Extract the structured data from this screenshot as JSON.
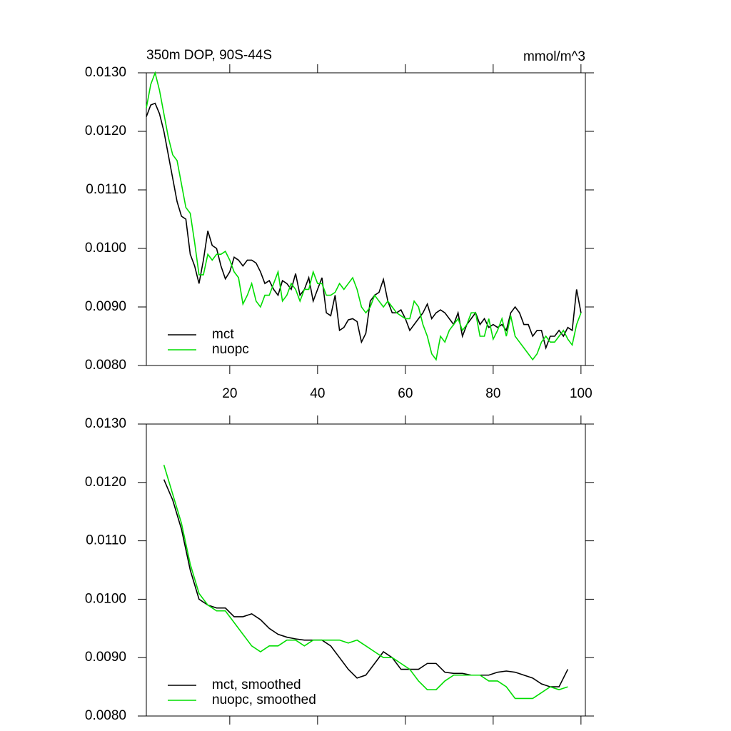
{
  "chart_data": [
    {
      "type": "line",
      "title": "350m DOP, 90S-44S",
      "units": "mmol/m^3",
      "x": [
        1,
        2,
        3,
        4,
        5,
        6,
        7,
        8,
        9,
        10,
        11,
        12,
        13,
        14,
        15,
        16,
        17,
        18,
        19,
        20,
        21,
        22,
        23,
        24,
        25,
        26,
        27,
        28,
        29,
        30,
        31,
        32,
        33,
        34,
        35,
        36,
        37,
        38,
        39,
        40,
        41,
        42,
        43,
        44,
        45,
        46,
        47,
        48,
        49,
        50,
        51,
        52,
        53,
        54,
        55,
        56,
        57,
        58,
        59,
        60,
        61,
        62,
        63,
        64,
        65,
        66,
        67,
        68,
        69,
        70,
        71,
        72,
        73,
        74,
        75,
        76,
        77,
        78,
        79,
        80,
        81,
        82,
        83,
        84,
        85,
        86,
        87,
        88,
        89,
        90,
        91,
        92,
        93,
        94,
        95,
        96,
        97,
        98,
        99,
        100
      ],
      "series": [
        {
          "name": "mct",
          "color": "#000000",
          "values": [
            0.01225,
            0.01245,
            0.01248,
            0.0123,
            0.012,
            0.0116,
            0.0112,
            0.0108,
            0.01055,
            0.0105,
            0.0099,
            0.0097,
            0.0094,
            0.0098,
            0.0103,
            0.01005,
            0.01,
            0.0097,
            0.00948,
            0.0096,
            0.00985,
            0.0098,
            0.0097,
            0.0098,
            0.0098,
            0.00975,
            0.0096,
            0.0094,
            0.00945,
            0.0093,
            0.0092,
            0.00945,
            0.0094,
            0.0093,
            0.00957,
            0.0092,
            0.0093,
            0.0095,
            0.0091,
            0.0093,
            0.0095,
            0.0089,
            0.00885,
            0.0092,
            0.0086,
            0.00865,
            0.00878,
            0.0088,
            0.00875,
            0.0084,
            0.00855,
            0.0091,
            0.0092,
            0.00925,
            0.00947,
            0.0091,
            0.0089,
            0.0089,
            0.00895,
            0.0088,
            0.0086,
            0.0087,
            0.0088,
            0.0089,
            0.00905,
            0.0088,
            0.0089,
            0.00895,
            0.0089,
            0.0088,
            0.0087,
            0.0089,
            0.0085,
            0.0087,
            0.0088,
            0.0089,
            0.0087,
            0.0088,
            0.00865,
            0.0087,
            0.00865,
            0.0087,
            0.0086,
            0.0089,
            0.009,
            0.0089,
            0.0087,
            0.0087,
            0.0085,
            0.0086,
            0.0086,
            0.0083,
            0.0085,
            0.0085,
            0.0086,
            0.0085,
            0.00865,
            0.0086,
            0.0093,
            0.0089
          ]
        },
        {
          "name": "nuopc",
          "color": "#00dd00",
          "values": [
            0.0124,
            0.0128,
            0.013,
            0.0127,
            0.0123,
            0.0119,
            0.0116,
            0.0115,
            0.0111,
            0.0107,
            0.0106,
            0.0101,
            0.00955,
            0.00955,
            0.0099,
            0.0098,
            0.0099,
            0.0099,
            0.00995,
            0.0098,
            0.0096,
            0.0095,
            0.00905,
            0.0092,
            0.0094,
            0.0091,
            0.009,
            0.0092,
            0.0092,
            0.0094,
            0.0096,
            0.0091,
            0.0092,
            0.0094,
            0.0093,
            0.0091,
            0.0093,
            0.0093,
            0.0096,
            0.0094,
            0.0094,
            0.0092,
            0.0092,
            0.00925,
            0.0094,
            0.0093,
            0.0094,
            0.0095,
            0.0093,
            0.009,
            0.0089,
            0.009,
            0.0092,
            0.0091,
            0.009,
            0.0091,
            0.009,
            0.0089,
            0.00885,
            0.0088,
            0.0088,
            0.0091,
            0.009,
            0.0087,
            0.0085,
            0.0082,
            0.0081,
            0.0085,
            0.0084,
            0.0086,
            0.0087,
            0.0088,
            0.0086,
            0.0087,
            0.0089,
            0.0089,
            0.0085,
            0.0085,
            0.0088,
            0.00845,
            0.0086,
            0.0088,
            0.0085,
            0.00885,
            0.0085,
            0.0084,
            0.0083,
            0.0082,
            0.0081,
            0.0082,
            0.0084,
            0.0085,
            0.0084,
            0.0084,
            0.0085,
            0.0086,
            0.00845,
            0.00835,
            0.0087,
            0.0089
          ]
        }
      ],
      "xlim": [
        1,
        101
      ],
      "xticks": [
        20,
        40,
        60,
        80,
        100
      ],
      "xtick_labels": true,
      "ylim": [
        0.008,
        0.013
      ],
      "yticks": [
        {
          "value": 0.008,
          "label": "0.0080"
        },
        {
          "value": 0.009,
          "label": "0.0090"
        },
        {
          "value": 0.01,
          "label": "0.0100"
        },
        {
          "value": 0.011,
          "label": "0.0110"
        },
        {
          "value": 0.012,
          "label": "0.0120"
        },
        {
          "value": 0.013,
          "label": "0.0130"
        }
      ],
      "legend": "lower left"
    },
    {
      "type": "line",
      "x": [
        5,
        7,
        9,
        11,
        13,
        15,
        17,
        19,
        21,
        23,
        25,
        27,
        29,
        31,
        33,
        35,
        37,
        39,
        41,
        43,
        45,
        47,
        49,
        51,
        53,
        55,
        57,
        59,
        61,
        63,
        65,
        67,
        69,
        71,
        73,
        75,
        77,
        79,
        81,
        83,
        85,
        87,
        89,
        91,
        93,
        95,
        97
      ],
      "series": [
        {
          "name": "mct, smoothed",
          "color": "#000000",
          "values": [
            0.01205,
            0.0117,
            0.0112,
            0.0105,
            0.01,
            0.0099,
            0.00985,
            0.00985,
            0.0097,
            0.0097,
            0.00975,
            0.00965,
            0.0095,
            0.0094,
            0.00935,
            0.00932,
            0.0093,
            0.0093,
            0.0093,
            0.0092,
            0.009,
            0.0088,
            0.00865,
            0.0087,
            0.0089,
            0.0091,
            0.009,
            0.0088,
            0.0088,
            0.0088,
            0.0089,
            0.0089,
            0.00875,
            0.00873,
            0.00873,
            0.0087,
            0.0087,
            0.0087,
            0.00875,
            0.00877,
            0.00875,
            0.0087,
            0.00865,
            0.00855,
            0.0085,
            0.0085,
            0.0088
          ]
        },
        {
          "name": "nuopc, smoothed",
          "color": "#00dd00",
          "values": [
            0.0123,
            0.0118,
            0.0113,
            0.0106,
            0.0101,
            0.0099,
            0.0098,
            0.0098,
            0.0096,
            0.0094,
            0.0092,
            0.0091,
            0.0092,
            0.0092,
            0.0093,
            0.0093,
            0.0092,
            0.0093,
            0.0093,
            0.0093,
            0.0093,
            0.00925,
            0.0093,
            0.0092,
            0.0091,
            0.009,
            0.009,
            0.0089,
            0.0088,
            0.0086,
            0.00845,
            0.00845,
            0.0086,
            0.0087,
            0.0087,
            0.0087,
            0.0087,
            0.0086,
            0.0086,
            0.0085,
            0.0083,
            0.0083,
            0.0083,
            0.0084,
            0.0085,
            0.00845,
            0.0085
          ]
        }
      ],
      "xlim": [
        1,
        101
      ],
      "xticks": [
        20,
        40,
        60,
        80,
        100
      ],
      "xtick_labels": false,
      "ylim": [
        0.008,
        0.013
      ],
      "yticks": [
        {
          "value": 0.008,
          "label": "0.0080"
        },
        {
          "value": 0.009,
          "label": "0.0090"
        },
        {
          "value": 0.01,
          "label": "0.0100"
        },
        {
          "value": 0.011,
          "label": "0.0110"
        },
        {
          "value": 0.012,
          "label": "0.0120"
        },
        {
          "value": 0.013,
          "label": "0.0130"
        }
      ],
      "legend": "lower left"
    }
  ]
}
